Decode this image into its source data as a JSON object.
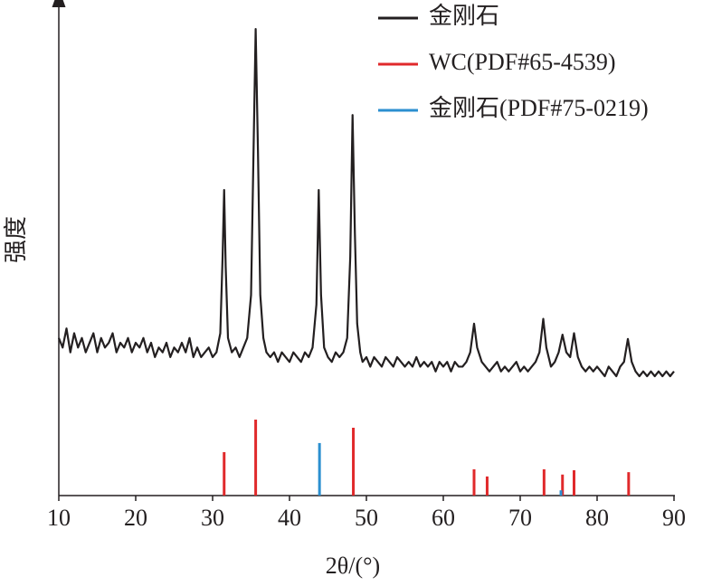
{
  "chart_data": {
    "type": "line",
    "x_label": "2θ/(°)",
    "y_label": "强度",
    "xlim": [
      10,
      90
    ],
    "xticks": [
      10,
      20,
      30,
      40,
      50,
      60,
      70,
      80,
      90
    ],
    "ylim": [
      0,
      100
    ],
    "legend": "top-right",
    "series": [
      {
        "name": "金刚石",
        "color": "#231f20",
        "type": "line",
        "x": [
          10,
          10.5,
          11,
          11.5,
          12,
          12.5,
          13,
          13.5,
          14,
          14.5,
          15,
          15.5,
          16,
          16.5,
          17,
          17.5,
          18,
          18.5,
          19,
          19.5,
          20,
          20.5,
          21,
          21.5,
          22,
          22.5,
          23,
          23.5,
          24,
          24.5,
          25,
          25.5,
          26,
          26.5,
          27,
          27.5,
          28,
          28.5,
          29,
          29.5,
          30,
          30.5,
          31,
          31.3,
          31.5,
          31.7,
          32,
          32.5,
          33,
          33.5,
          34,
          34.5,
          35,
          35.3,
          35.6,
          35.9,
          36.2,
          36.6,
          37,
          37.5,
          38,
          38.5,
          39,
          39.5,
          40,
          40.5,
          41,
          41.5,
          42,
          42.5,
          43,
          43.5,
          43.8,
          44.1,
          44.5,
          45,
          45.5,
          46,
          46.5,
          47,
          47.5,
          47.9,
          48.2,
          48.5,
          48.8,
          49.2,
          49.5,
          50,
          50.5,
          51,
          51.5,
          52,
          52.5,
          53,
          53.5,
          54,
          54.5,
          55,
          55.5,
          56,
          56.5,
          57,
          57.5,
          58,
          58.5,
          59,
          59.5,
          60,
          60.5,
          61,
          61.5,
          62,
          62.5,
          63,
          63.5,
          64,
          64.4,
          65,
          65.5,
          66,
          66.5,
          67,
          67.5,
          68,
          68.5,
          69,
          69.5,
          70,
          70.5,
          71,
          71.5,
          72,
          72.5,
          73,
          73.4,
          74,
          74.5,
          75,
          75.5,
          76,
          76.5,
          77,
          77.5,
          78,
          78.5,
          79,
          79.5,
          80,
          80.5,
          81,
          81.5,
          82,
          82.5,
          83,
          83.5,
          84,
          84.5,
          85,
          85.5,
          86,
          86.5,
          87,
          87.5,
          88,
          88.5,
          89,
          89.5,
          90
        ],
        "values": [
          33,
          31,
          35,
          30,
          34,
          31,
          33,
          30,
          32,
          34,
          30,
          33,
          31,
          32,
          34,
          30,
          32,
          31,
          33,
          30,
          32,
          31,
          33,
          30,
          32,
          29,
          31,
          30,
          32,
          29,
          31,
          30,
          32,
          30,
          33,
          29,
          31,
          29,
          30,
          31,
          29,
          30,
          34,
          50,
          64,
          48,
          33,
          30,
          31,
          29,
          31,
          33,
          42,
          70,
          97.7,
          72,
          42,
          33,
          30,
          29,
          30,
          28,
          30,
          29,
          28,
          30,
          29,
          28,
          30,
          29,
          31,
          40,
          64,
          42,
          31,
          29,
          28,
          30,
          29,
          30,
          33,
          50,
          79.7,
          55,
          36,
          30,
          28,
          29,
          27,
          29,
          28,
          27,
          29,
          28,
          27,
          29,
          28,
          27,
          28,
          27,
          29,
          27,
          28,
          27,
          28,
          26,
          28,
          27,
          28,
          26,
          28,
          27,
          27,
          28,
          30,
          36,
          31,
          28,
          27,
          26,
          27,
          28,
          26,
          27,
          26,
          27,
          28,
          26,
          27,
          26,
          27,
          28,
          30,
          37,
          31,
          27,
          28,
          30,
          33.7,
          30,
          29,
          34,
          29,
          27,
          26,
          27,
          26,
          27,
          26,
          25,
          27,
          26,
          25,
          27,
          28,
          32.8,
          28,
          26,
          25,
          26,
          25,
          26,
          25,
          26,
          25,
          26,
          25,
          26
        ]
      },
      {
        "name": "WC(PDF#65-4539)",
        "color": "#e0292b",
        "type": "stem",
        "x": [
          31.5,
          35.6,
          48.3,
          64,
          65.7,
          73.1,
          75.5,
          77,
          84.1
        ],
        "values": [
          9.1,
          15.9,
          14.2,
          5.5,
          4,
          5.5,
          4.4,
          5.3,
          4.9
        ]
      },
      {
        "name": "金刚石(PDF#75-0219)",
        "color": "#2b8fd0",
        "type": "stem",
        "x": [
          43.9,
          75.3
        ],
        "values": [
          11,
          1.1
        ]
      }
    ]
  }
}
